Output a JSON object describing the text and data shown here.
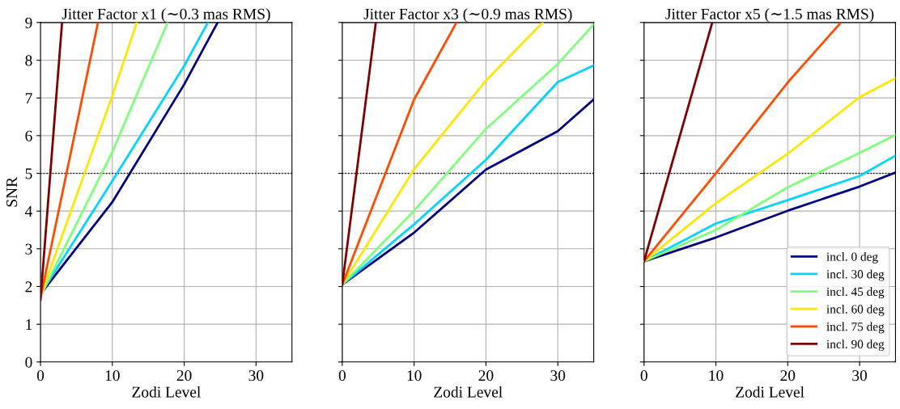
{
  "chart_data": [
    {
      "type": "line",
      "title": "Jitter Factor x1 (∼0.3 mas RMS)",
      "xlabel": "Zodi Level",
      "ylabel": "SNR",
      "xlim": [
        0,
        35
      ],
      "ylim": [
        0,
        9
      ],
      "xticks": [
        0,
        10,
        20,
        30
      ],
      "yticks": [
        0,
        1,
        2,
        3,
        4,
        5,
        6,
        7,
        8,
        9
      ],
      "grid": true,
      "legend": false,
      "line_style": "solid",
      "ref_lines": [
        {
          "axis": "y",
          "value": 5,
          "color": "#000000",
          "line_style": "dotted"
        }
      ],
      "series": [
        {
          "color": "#00007f",
          "x": [
            0,
            10,
            20,
            24.65
          ],
          "values": [
            1.8,
            4.24,
            7.36,
            9
          ]
        },
        {
          "color": "#00d4ff",
          "x": [
            0,
            10,
            20,
            23.3
          ],
          "values": [
            1.8,
            4.8,
            7.85,
            9
          ]
        },
        {
          "color": "#7dff7a",
          "x": [
            0,
            10,
            17.7
          ],
          "values": [
            1.75,
            5.57,
            9
          ]
        },
        {
          "color": "#ffe600",
          "x": [
            0,
            10,
            13.4
          ],
          "values": [
            1.75,
            7.06,
            9
          ]
        },
        {
          "color": "#ff4a00",
          "x": [
            0,
            8.0
          ],
          "values": [
            1.7,
            9
          ]
        },
        {
          "color": "#7f0000",
          "x": [
            0,
            3.0
          ],
          "values": [
            1.65,
            9
          ]
        }
      ]
    },
    {
      "type": "line",
      "title": "Jitter Factor x3 (∼0.9 mas RMS)",
      "xlabel": "Zodi Level",
      "xlim": [
        0,
        35
      ],
      "ylim": [
        0,
        9
      ],
      "xticks": [
        0,
        10,
        20,
        30
      ],
      "yticks": [
        0,
        1,
        2,
        3,
        4,
        5,
        6,
        7,
        8,
        9
      ],
      "tick_labels": "x",
      "grid": true,
      "legend": false,
      "line_style": "solid",
      "ref_lines": [
        {
          "axis": "y",
          "value": 5,
          "color": "#000000",
          "line_style": "dotted"
        }
      ],
      "series": [
        {
          "color": "#00007f",
          "x": [
            0,
            10,
            20,
            30,
            35
          ],
          "values": [
            2.05,
            3.43,
            5.1,
            6.12,
            6.96
          ]
        },
        {
          "color": "#00d4ff",
          "x": [
            0,
            10,
            20,
            30,
            35
          ],
          "values": [
            2.05,
            3.65,
            5.36,
            7.42,
            7.86
          ]
        },
        {
          "color": "#7dff7a",
          "x": [
            0,
            10,
            20,
            30,
            35
          ],
          "values": [
            2.05,
            4.01,
            6.18,
            7.9,
            8.95
          ]
        },
        {
          "color": "#ffe600",
          "x": [
            0,
            10,
            20,
            27.9
          ],
          "values": [
            2.05,
            5.11,
            7.46,
            9
          ]
        },
        {
          "color": "#ff4a00",
          "x": [
            0,
            10,
            15.9
          ],
          "values": [
            2.05,
            6.96,
            9
          ]
        },
        {
          "color": "#7f0000",
          "x": [
            0,
            4.67
          ],
          "values": [
            2.05,
            9
          ]
        }
      ]
    },
    {
      "type": "line",
      "title": "Jitter Factor x5 (∼1.5 mas RMS)",
      "xlabel": "Zodi Level",
      "xlim": [
        0,
        35
      ],
      "ylim": [
        0,
        9
      ],
      "xticks": [
        0,
        10,
        20,
        30
      ],
      "yticks": [
        0,
        1,
        2,
        3,
        4,
        5,
        6,
        7,
        8,
        9
      ],
      "tick_labels": "x",
      "grid": true,
      "legend": "bottom right",
      "line_style": "solid",
      "ref_lines": [
        {
          "axis": "y",
          "value": 5,
          "color": "#000000",
          "line_style": "dotted"
        }
      ],
      "series": [
        {
          "name": "incl. 0 deg",
          "color": "#00007f",
          "x": [
            0,
            10,
            20,
            30,
            35
          ],
          "values": [
            2.67,
            3.3,
            4.01,
            4.65,
            5.02
          ]
        },
        {
          "name": "incl. 30 deg",
          "color": "#00d4ff",
          "x": [
            0,
            10,
            20,
            30,
            35
          ],
          "values": [
            2.67,
            3.67,
            4.29,
            4.93,
            5.47
          ]
        },
        {
          "name": "incl. 45 deg",
          "color": "#7dff7a",
          "x": [
            0,
            10,
            20,
            30,
            35
          ],
          "values": [
            2.67,
            3.5,
            4.63,
            5.54,
            6.02
          ]
        },
        {
          "name": "incl. 60 deg",
          "color": "#ffe600",
          "x": [
            0,
            10,
            20,
            30,
            35
          ],
          "values": [
            2.67,
            4.21,
            5.52,
            7.02,
            7.52
          ]
        },
        {
          "name": "incl. 75 deg",
          "color": "#ff4a00",
          "x": [
            0,
            10,
            20,
            27.4
          ],
          "values": [
            2.67,
            5.0,
            7.41,
            9
          ]
        },
        {
          "name": "incl. 90 deg",
          "color": "#7f0000",
          "x": [
            0,
            9.5
          ],
          "values": [
            2.67,
            9
          ]
        }
      ]
    }
  ]
}
